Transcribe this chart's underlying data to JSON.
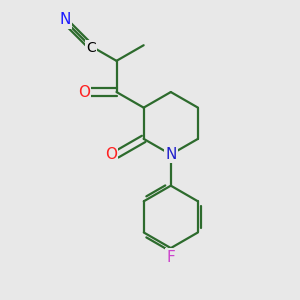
{
  "bg_color": "#e8e8e8",
  "bond_color": "#2d6b2d",
  "bond_width": 1.6,
  "atom_colors": {
    "N_nitrile": "#1a1aff",
    "C": "#000000",
    "O": "#ff2020",
    "N_ring": "#2020cc",
    "F": "#cc44cc"
  },
  "figsize": [
    3.0,
    3.0
  ],
  "dpi": 100
}
